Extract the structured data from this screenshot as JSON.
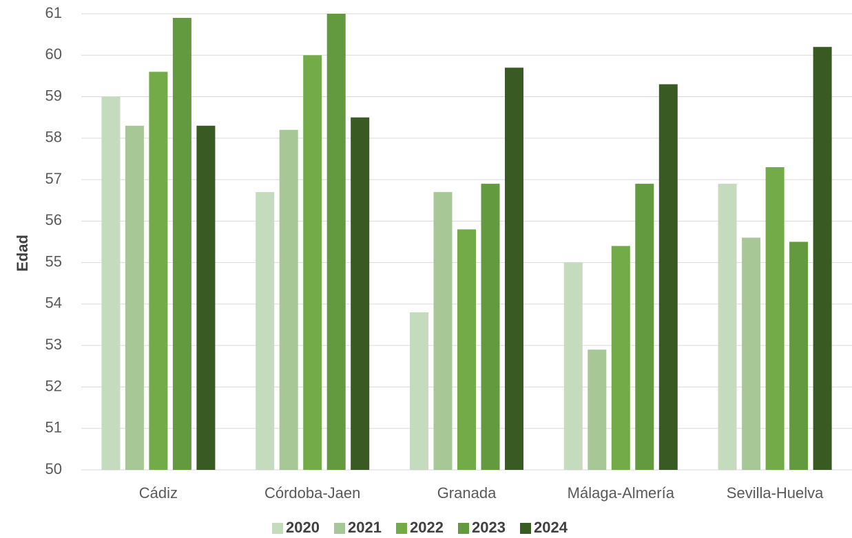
{
  "chart_data": {
    "type": "bar",
    "y_label": "Edad",
    "categories": [
      "Cádiz",
      "Córdoba-Jaen",
      "Granada",
      "Málaga-Almería",
      "Sevilla-Huelva"
    ],
    "series": [
      {
        "name": "2020",
        "color": "#c5dbbd",
        "values": [
          59,
          56.7,
          53.8,
          55,
          56.9
        ]
      },
      {
        "name": "2021",
        "color": "#a7c797",
        "values": [
          58.3,
          58.2,
          56.7,
          52.9,
          55.6
        ]
      },
      {
        "name": "2022",
        "color": "#72ab48",
        "values": [
          59.6,
          60,
          55.8,
          55.4,
          57.3
        ]
      },
      {
        "name": "2023",
        "color": "#639a3f",
        "values": [
          60.9,
          61,
          56.9,
          56.9,
          55.5
        ]
      },
      {
        "name": "2024",
        "color": "#3a5a24",
        "values": [
          58.3,
          58.5,
          59.7,
          59.3,
          60.2
        ]
      }
    ],
    "ylim": [
      50,
      61
    ],
    "yticks": [
      50,
      51,
      52,
      53,
      54,
      55,
      56,
      57,
      58,
      59,
      60,
      61
    ],
    "grid": true,
    "legend": "bottom"
  }
}
